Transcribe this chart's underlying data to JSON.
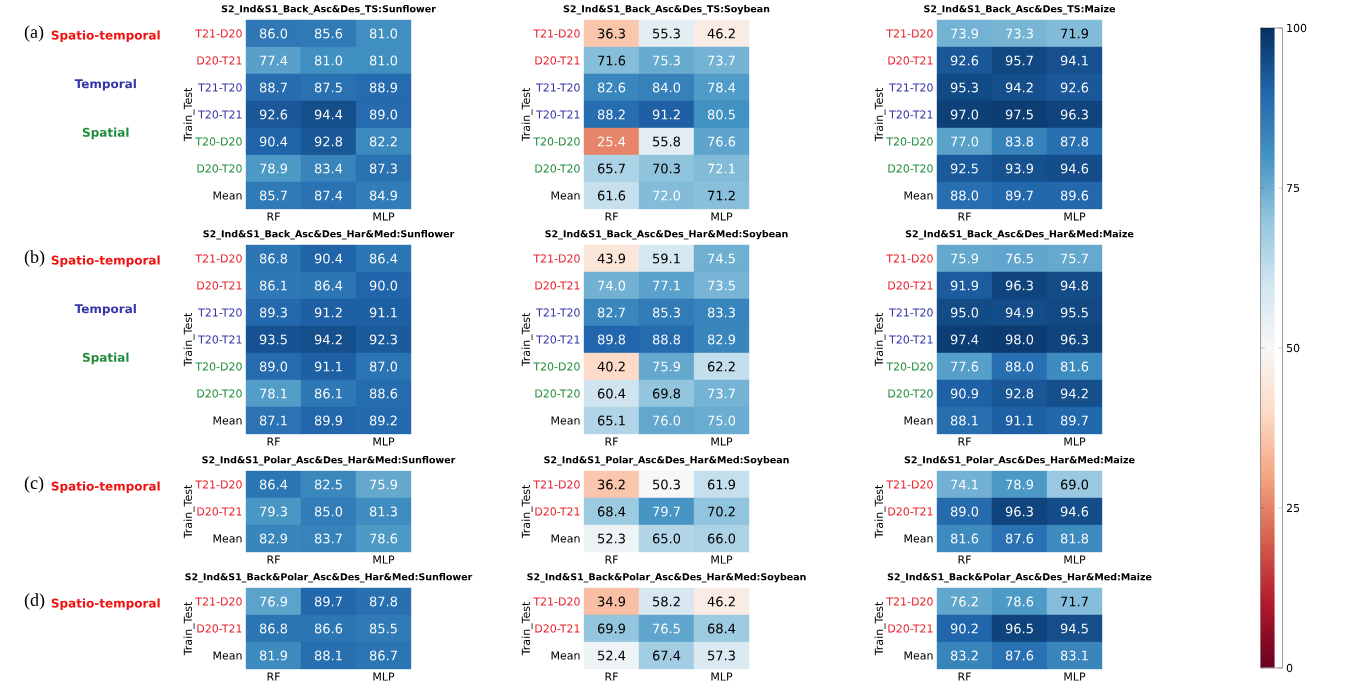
{
  "chart_data": [
    {
      "type": "heatmap",
      "title": "S2_Ind&S1_Back_Asc&Des_TS:Sunflower",
      "ylabel": "Train_Test",
      "categories": [
        "RF",
        null,
        "MLP"
      ],
      "y_categories": [
        "T21-D20",
        "D20-T21",
        "T21-T20",
        "T20-T21",
        "T20-D20",
        "D20-T20",
        "Mean"
      ],
      "cells": [
        [
          86.0,
          85.6,
          81.0
        ],
        [
          77.4,
          81.0,
          81.0
        ],
        [
          88.7,
          87.5,
          88.9
        ],
        [
          92.6,
          94.4,
          89.0
        ],
        [
          90.4,
          92.8,
          82.2
        ],
        [
          78.9,
          83.4,
          87.3
        ],
        [
          85.7,
          87.4,
          84.9
        ]
      ],
      "cell_labels": [
        [
          "86.0",
          "85.6",
          "81.0"
        ],
        [
          "77.4",
          "81.0",
          "81.0"
        ],
        [
          "88.7",
          "87.5",
          "88.9"
        ],
        [
          "92.6",
          "94.4",
          "89.0"
        ],
        [
          "90.4",
          "92.8",
          "82.2"
        ],
        [
          "78.9",
          "83.4",
          "87.3"
        ],
        [
          "85.7",
          "87.4",
          "84.9"
        ]
      ],
      "annotations": [
        "(a)",
        "Spatio-temporal",
        "Temporal",
        "Spatial"
      ]
    },
    {
      "type": "heatmap",
      "title": "S2_Ind&S1_Back_Asc&Des_TS:Soybean",
      "ylabel": "Train_Test",
      "categories": [
        "RF",
        null,
        "MLP"
      ],
      "y_categories": [
        "T21-D20",
        "D20-T21",
        "T21-T20",
        "T20-T21",
        "T20-D20",
        "D20-T20",
        "Mean"
      ],
      "cells": [
        [
          36.3,
          55.3,
          46.2
        ],
        [
          71.6,
          75.3,
          73.7
        ],
        [
          82.6,
          84.0,
          78.4
        ],
        [
          88.2,
          91.2,
          80.5
        ],
        [
          25.4,
          55.8,
          76.6
        ],
        [
          65.7,
          70.3,
          72.1
        ],
        [
          61.6,
          72.0,
          71.2
        ]
      ],
      "cell_labels": [
        [
          "36.3",
          "55.3",
          "46.2"
        ],
        [
          "71.6",
          "75.3",
          "73.7"
        ],
        [
          "82.6",
          "84.0",
          "78.4"
        ],
        [
          "88.2",
          "91.2",
          "80.5"
        ],
        [
          "25.4",
          "55.8",
          "76.6"
        ],
        [
          "65.7",
          "70.3",
          "72.1"
        ],
        [
          "61.6",
          "72.0",
          "71.2"
        ]
      ]
    },
    {
      "type": "heatmap",
      "title": "S2_Ind&S1_Back_Asc&Des_TS:Maize",
      "ylabel": "Train_Test",
      "categories": [
        "RF",
        null,
        "MLP"
      ],
      "y_categories": [
        "T21-D20",
        "D20-T21",
        "T21-T20",
        "T20-T21",
        "T20-D20",
        "D20-T20",
        "Mean"
      ],
      "cells": [
        [
          73.9,
          73.3,
          71.9
        ],
        [
          92.6,
          95.7,
          94.1
        ],
        [
          95.3,
          94.2,
          92.6
        ],
        [
          97.0,
          97.5,
          96.3
        ],
        [
          77.0,
          83.8,
          87.8
        ],
        [
          92.5,
          93.9,
          94.6
        ],
        [
          88.0,
          89.7,
          89.6
        ]
      ],
      "cell_labels": [
        [
          "73.9",
          "73.3",
          "71.9"
        ],
        [
          "92.6",
          "95.7",
          "94.1"
        ],
        [
          "95.3",
          "94.2",
          "92.6"
        ],
        [
          "97.0",
          "97.5",
          "96.3"
        ],
        [
          "77.0",
          "83.8",
          "87.8"
        ],
        [
          "92.5",
          "93.9",
          "94.6"
        ],
        [
          "88.0",
          "89.7",
          "89.6"
        ]
      ],
      "clim": [
        0,
        100
      ],
      "cticks": [
        0,
        25,
        50,
        75,
        100
      ]
    },
    {
      "type": "heatmap",
      "title": "S2_Ind&S1_Back_Asc&Des_Har&Med:Sunflower",
      "ylabel": "Train_Test",
      "categories": [
        "RF",
        null,
        "MLP"
      ],
      "y_categories": [
        "T21-D20",
        "D20-T21",
        "T21-T20",
        "T20-T21",
        "T20-D20",
        "D20-T20",
        "Mean"
      ],
      "cells": [
        [
          86.8,
          90.4,
          86.4
        ],
        [
          86.1,
          86.4,
          90.0
        ],
        [
          89.3,
          91.2,
          91.1
        ],
        [
          93.5,
          94.2,
          92.3
        ],
        [
          89.0,
          91.1,
          87.0
        ],
        [
          78.1,
          86.1,
          88.6
        ],
        [
          87.1,
          89.9,
          89.2
        ]
      ],
      "cell_labels": [
        [
          "86.8",
          "90.4",
          "86.4"
        ],
        [
          "86.1",
          "86.4",
          "90.0"
        ],
        [
          "89.3",
          "91.2",
          "91.1"
        ],
        [
          "93.5",
          "94.2",
          "92.3"
        ],
        [
          "89.0",
          "91.1",
          "87.0"
        ],
        [
          "78.1",
          "86.1",
          "88.6"
        ],
        [
          "87.1",
          "89.9",
          "89.2"
        ]
      ],
      "annotations": [
        "(b)",
        "Spatio-temporal",
        "Temporal",
        "Spatial"
      ]
    },
    {
      "type": "heatmap",
      "title": "S2_Ind&S1_Back_Asc&Des_Har&Med:Soybean",
      "ylabel": "Train_Test",
      "categories": [
        "RF",
        null,
        "MLP"
      ],
      "y_categories": [
        "T21-D20",
        "D20-T21",
        "T21-T20",
        "T20-T21",
        "T20-D20",
        "D20-T20",
        "Mean"
      ],
      "cells": [
        [
          43.9,
          59.1,
          74.5
        ],
        [
          74.0,
          77.1,
          73.5
        ],
        [
          82.7,
          85.3,
          83.3
        ],
        [
          89.8,
          88.8,
          82.9
        ],
        [
          40.2,
          75.9,
          62.2
        ],
        [
          60.4,
          69.8,
          73.7
        ],
        [
          65.1,
          76.0,
          75.0
        ]
      ],
      "cell_labels": [
        [
          "43.9",
          "59.1",
          "74.5"
        ],
        [
          "74.0",
          "77.1",
          "73.5"
        ],
        [
          "82.7",
          "85.3",
          "83.3"
        ],
        [
          "89.8",
          "88.8",
          "82.9"
        ],
        [
          "40.2",
          "75.9",
          "62.2"
        ],
        [
          "60.4",
          "69.8",
          "73.7"
        ],
        [
          "65.1",
          "76.0",
          "75.0"
        ]
      ]
    },
    {
      "type": "heatmap",
      "title": "S2_Ind&S1_Back_Asc&Des_Har&Med:Maize",
      "ylabel": "Train_Test",
      "categories": [
        "RF",
        null,
        "MLP"
      ],
      "y_categories": [
        "T21-D20",
        "D20-T21",
        "T21-T20",
        "T20-T21",
        "T20-D20",
        "D20-T20",
        "Mean"
      ],
      "cells": [
        [
          75.9,
          76.5,
          75.7
        ],
        [
          91.9,
          96.3,
          94.8
        ],
        [
          95.0,
          94.9,
          95.5
        ],
        [
          97.4,
          98.0,
          96.3
        ],
        [
          77.6,
          88.0,
          81.6
        ],
        [
          90.9,
          92.8,
          94.2
        ],
        [
          88.1,
          91.1,
          89.7
        ]
      ],
      "cell_labels": [
        [
          "75.9",
          "76.5",
          "75.7"
        ],
        [
          "91.9",
          "96.3",
          "94.8"
        ],
        [
          "95.0",
          "94.9",
          "95.5"
        ],
        [
          "97.4",
          "98.0",
          "96.3"
        ],
        [
          "77.6",
          "88.0",
          "81.6"
        ],
        [
          "90.9",
          "92.8",
          "94.2"
        ],
        [
          "88.1",
          "91.1",
          "89.7"
        ]
      ]
    },
    {
      "type": "heatmap",
      "title": "S2_Ind&S1_Polar_Asc&Des_Har&Med:Sunflower",
      "ylabel": "Train_Test",
      "categories": [
        "RF",
        null,
        "MLP"
      ],
      "y_categories": [
        "T21-D20",
        "D20-T21",
        "Mean"
      ],
      "cells": [
        [
          86.4,
          82.5,
          75.9
        ],
        [
          79.3,
          85.0,
          81.3
        ],
        [
          82.9,
          83.7,
          78.6
        ]
      ],
      "cell_labels": [
        [
          "86.4",
          "82.5",
          "75.9"
        ],
        [
          "79.3",
          "85.0",
          "81.3"
        ],
        [
          "82.9",
          "83.7",
          "78.6"
        ]
      ],
      "annotations": [
        "(c)",
        "Spatio-temporal"
      ]
    },
    {
      "type": "heatmap",
      "title": "S2_Ind&S1_Polar_Asc&Des_Har&Med:Soybean",
      "ylabel": "Train_Test",
      "categories": [
        "RF",
        null,
        "MLP"
      ],
      "y_categories": [
        "T21-D20",
        "D20-T21",
        "Mean"
      ],
      "cells": [
        [
          36.2,
          50.3,
          61.9
        ],
        [
          68.4,
          79.7,
          70.2
        ],
        [
          52.3,
          65.0,
          66.0
        ]
      ],
      "cell_labels": [
        [
          "36.2",
          "50.3",
          "61.9"
        ],
        [
          "68.4",
          "79.7",
          "70.2"
        ],
        [
          "52.3",
          "65.0",
          "66.0"
        ]
      ]
    },
    {
      "type": "heatmap",
      "title": "S2_Ind&S1_Polar_Asc&Des_Har&Med:Maize",
      "ylabel": "Train_Test",
      "categories": [
        "RF",
        null,
        "MLP"
      ],
      "y_categories": [
        "T21-D20",
        "D20-T21",
        "Mean"
      ],
      "cells": [
        [
          74.1,
          78.9,
          69.0
        ],
        [
          89.0,
          96.3,
          94.6
        ],
        [
          81.6,
          87.6,
          81.8
        ]
      ],
      "cell_labels": [
        [
          "74.1",
          "78.9",
          "69.0"
        ],
        [
          "89.0",
          "96.3",
          "94.6"
        ],
        [
          "81.6",
          "87.6",
          "81.8"
        ]
      ]
    },
    {
      "type": "heatmap",
      "title": "S2_Ind&S1_Back&Polar_Asc&Des_Har&Med:Sunflower",
      "ylabel": "Train_Test",
      "categories": [
        "RF",
        null,
        "MLP"
      ],
      "y_categories": [
        "T21-D20",
        "D20-T21",
        "Mean"
      ],
      "cells": [
        [
          76.9,
          89.7,
          87.8
        ],
        [
          86.8,
          86.6,
          85.5
        ],
        [
          81.9,
          88.1,
          86.7
        ]
      ],
      "cell_labels": [
        [
          "76.9",
          "89.7",
          "87.8"
        ],
        [
          "86.8",
          "86.6",
          "85.5"
        ],
        [
          "81.9",
          "88.1",
          "86.7"
        ]
      ],
      "annotations": [
        "(d)",
        "Spatio-temporal"
      ]
    },
    {
      "type": "heatmap",
      "title": "S2_Ind&S1_Back&Polar_Asc&Des_Har&Med:Soybean",
      "ylabel": "Train_Test",
      "categories": [
        "RF",
        null,
        "MLP"
      ],
      "y_categories": [
        "T21-D20",
        "D20-T21",
        "Mean"
      ],
      "cells": [
        [
          34.9,
          58.2,
          46.2
        ],
        [
          69.9,
          76.5,
          68.4
        ],
        [
          52.4,
          67.4,
          57.3
        ]
      ],
      "cell_labels": [
        [
          "34.9",
          "58.2",
          "46.2"
        ],
        [
          "69.9",
          "76.5",
          "68.4"
        ],
        [
          "52.4",
          "67.4",
          "57.3"
        ]
      ]
    },
    {
      "type": "heatmap",
      "title": "S2_Ind&S1_Back&Polar_Asc&Des_Har&Med:Maize",
      "ylabel": "Train_Test",
      "categories": [
        "RF",
        null,
        "MLP"
      ],
      "y_categories": [
        "T21-D20",
        "D20-T21",
        "Mean"
      ],
      "cells": [
        [
          76.2,
          78.6,
          71.7
        ],
        [
          90.2,
          96.5,
          94.5
        ],
        [
          83.2,
          87.6,
          83.1
        ]
      ],
      "cell_labels": [
        [
          "76.2",
          "78.6",
          "71.7"
        ],
        [
          "90.2",
          "96.5",
          "94.5"
        ],
        [
          "83.2",
          "87.6",
          "83.1"
        ]
      ]
    }
  ]
}
